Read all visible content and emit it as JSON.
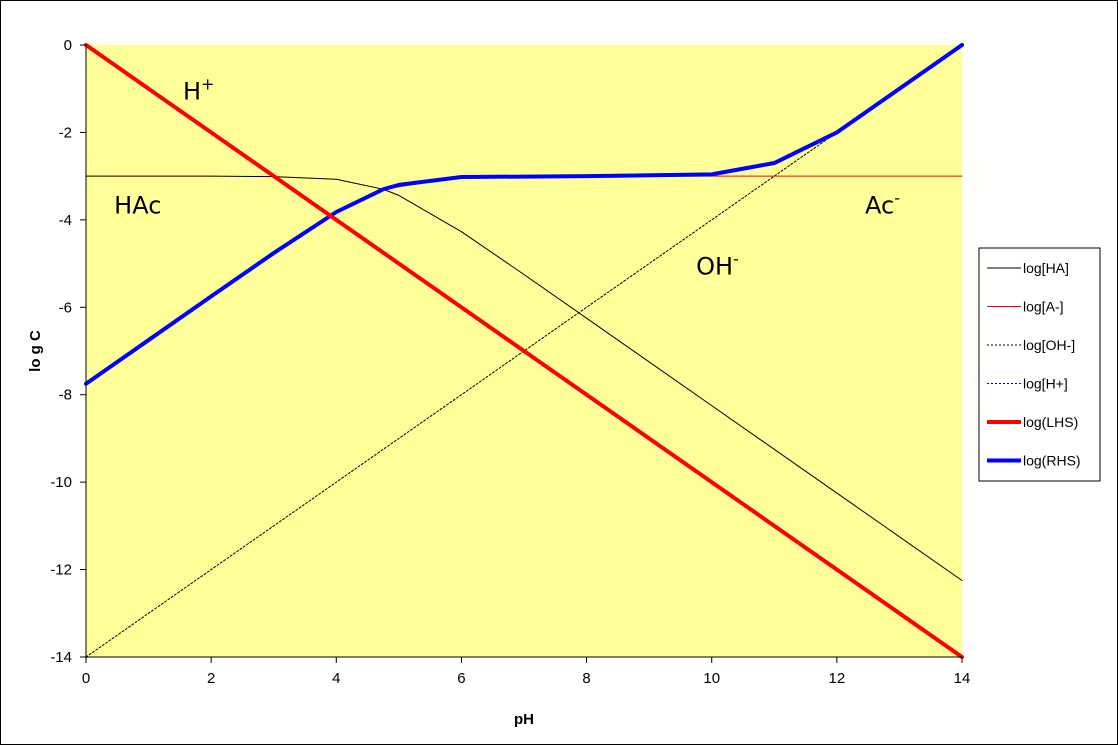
{
  "chart_data": {
    "type": "line",
    "title": "",
    "xlabel": "pH",
    "ylabel": "lo g C",
    "xlim": [
      0,
      14
    ],
    "ylim": [
      -14,
      0
    ],
    "x_ticks": [
      "0",
      "2",
      "4",
      "6",
      "8",
      "10",
      "12",
      "14"
    ],
    "y_ticks": [
      "0",
      "-2",
      "-4",
      "-6",
      "-8",
      "-10",
      "-12",
      "-14"
    ],
    "grid": false,
    "plot_background": "#FFFF99",
    "legend_position": "right",
    "constants": {
      "log_c_total": -3,
      "pKa": 4.75,
      "pKw": 14
    },
    "series": [
      {
        "name": "log[HA]",
        "color": "#000000",
        "style": "solid",
        "width": 1,
        "x": [
          0,
          2,
          3,
          4,
          4.75,
          5,
          6,
          7,
          8,
          10,
          12,
          14
        ],
        "y": [
          -3.0,
          -3.0,
          -3.01,
          -3.07,
          -3.3,
          -3.44,
          -4.27,
          -5.25,
          -6.25,
          -8.25,
          -10.25,
          -12.25
        ]
      },
      {
        "name": "log[A-]",
        "color": "#FF0000",
        "style": "solid",
        "width": 1,
        "x": [
          3.0,
          4.0,
          4.75,
          6,
          8,
          10,
          12,
          14
        ],
        "y": [
          -4.76,
          -3.82,
          -3.3,
          -3.02,
          -3.0,
          -3.0,
          -3.0,
          -3.0
        ]
      },
      {
        "name": "log[OH-]",
        "color": "#000000",
        "style": "dotted",
        "width": 1,
        "x": [
          0,
          14
        ],
        "y": [
          -14,
          0
        ]
      },
      {
        "name": "log[H+]",
        "color": "#0000FF",
        "style": "dotted",
        "width": 1,
        "x": [
          0,
          14
        ],
        "y": [
          0,
          -14
        ]
      },
      {
        "name": "log(LHS)",
        "color": "#FF0000",
        "style": "solid",
        "width": 4,
        "x": [
          0,
          14
        ],
        "y": [
          0,
          -14
        ]
      },
      {
        "name": "log(RHS)",
        "color": "#0000FF",
        "style": "solid",
        "width": 4,
        "x": [
          0,
          1,
          2,
          3,
          4,
          4.75,
          5,
          6,
          8,
          10,
          11,
          12,
          13,
          14
        ],
        "y": [
          -7.75,
          -6.75,
          -5.75,
          -4.76,
          -3.82,
          -3.3,
          -3.2,
          -3.02,
          -3.0,
          -2.96,
          -2.7,
          -2.0,
          -1.0,
          0.0
        ]
      }
    ],
    "annotations": [
      {
        "base": "H",
        "sup": "+",
        "x": 1.55,
        "y": -1.25
      },
      {
        "base": "HAc",
        "sup": "",
        "x": 0.45,
        "y": -3.85
      },
      {
        "base": "Ac",
        "sup": "-",
        "x": 12.45,
        "y": -3.85
      },
      {
        "base": "OH",
        "sup": "-",
        "x": 9.75,
        "y": -5.25
      }
    ]
  }
}
